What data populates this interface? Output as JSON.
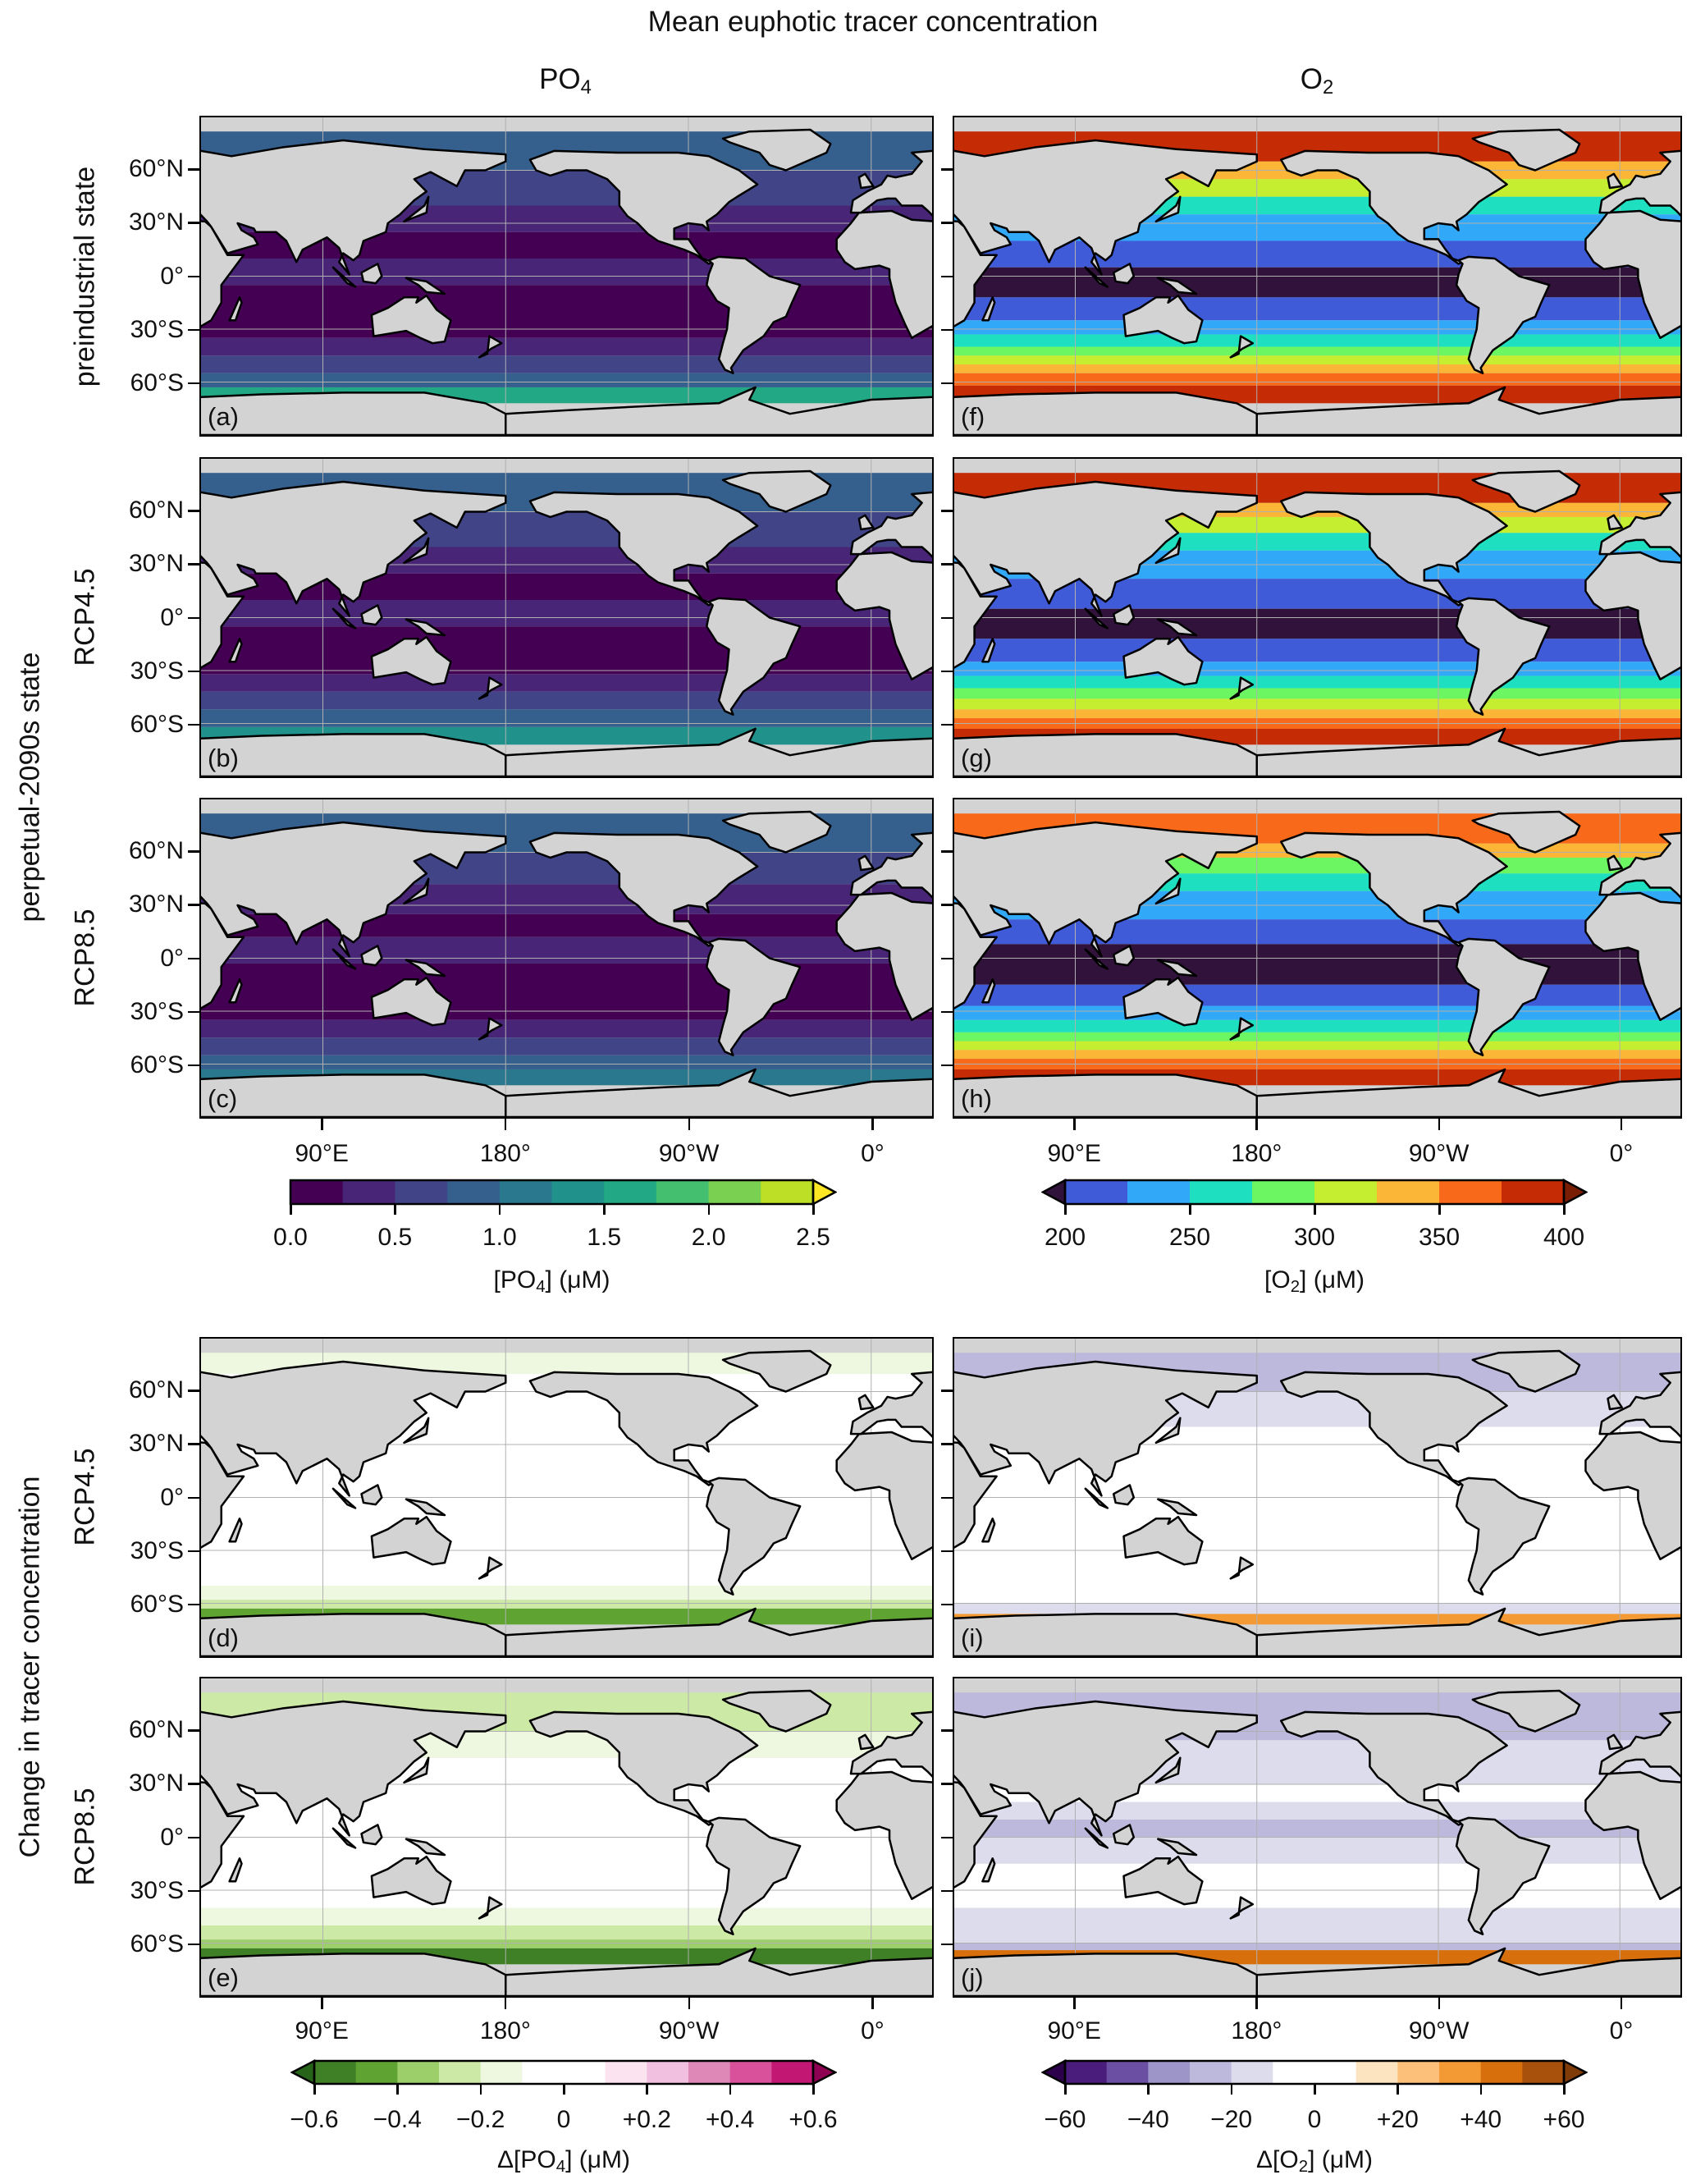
{
  "title": "Mean euphotic tracer concentration",
  "columns": [
    {
      "main": "PO",
      "sub": "4"
    },
    {
      "main": "O",
      "sub": "2"
    }
  ],
  "row_labels": {
    "preindustrial": "preindustrial state",
    "rcp45": "RCP4.5",
    "rcp85": "RCP8.5",
    "perpetual": "perpetual-2090s state",
    "change_rcp45": "RCP4.5",
    "change_rcp85": "RCP8.5",
    "change": "Change in tracer concentration"
  },
  "panels": {
    "a": "(a)",
    "b": "(b)",
    "c": "(c)",
    "d": "(d)",
    "e": "(e)",
    "f": "(f)",
    "g": "(g)",
    "h": "(h)",
    "i": "(i)",
    "j": "(j)"
  },
  "lat_ticks": [
    "60°N",
    "30°N",
    "0°",
    "30°S",
    "60°S"
  ],
  "lon_ticks": [
    "90°E",
    "180°",
    "90°W",
    "0°"
  ],
  "colors": {
    "land": "#d3d3d3",
    "coast": "#000000",
    "grid": "#b0b0b0"
  },
  "colorbars": {
    "po4": {
      "label": {
        "pre": "[PO",
        "sub": "4",
        "post": "] (μM)"
      },
      "min": 0,
      "max": 2.5,
      "extend": "max",
      "ticks": [
        "0.0",
        "0.5",
        "1.0",
        "1.5",
        "2.0",
        "2.5"
      ],
      "colors": [
        "#440154",
        "#482576",
        "#414487",
        "#355f8d",
        "#2a788e",
        "#21918c",
        "#22a884",
        "#44bf70",
        "#7ad151",
        "#bddf26"
      ],
      "over": "#fde725"
    },
    "o2": {
      "label": {
        "pre": "[O",
        "sub": "2",
        "post": "] (μM)"
      },
      "min": 200,
      "max": 400,
      "extend": "both",
      "ticks": [
        "200",
        "250",
        "300",
        "350",
        "400"
      ],
      "colors": [
        "#3f5bd8",
        "#32a8f8",
        "#1ee0c0",
        "#6cf762",
        "#c5ee30",
        "#fbb638",
        "#f86a1a",
        "#c52b05"
      ],
      "under": "#30123b",
      "over": "#7a1d05"
    },
    "dpo4": {
      "label": {
        "pre": "Δ[PO",
        "sub": "4",
        "post": "] (μM)"
      },
      "min": -0.6,
      "max": 0.6,
      "extend": "both",
      "ticks": [
        "−0.6",
        "−0.4",
        "−0.2",
        "0",
        "+0.2",
        "+0.4",
        "+0.6"
      ],
      "colors": [
        "#3f7f25",
        "#5fa333",
        "#9cce6a",
        "#cde9a6",
        "#eef7df",
        "#ffffff",
        "#ffffff",
        "#fbe3f0",
        "#f1bfdf",
        "#de88b8",
        "#d9519a",
        "#c21874"
      ],
      "under": "#276419",
      "over": "#8e0152"
    },
    "do2": {
      "label": {
        "pre": "Δ[O",
        "sub": "2",
        "post": "] (μM)"
      },
      "min": -60,
      "max": 60,
      "extend": "both",
      "ticks": [
        "−60",
        "−40",
        "−20",
        "0",
        "+20",
        "+40",
        "+60"
      ],
      "colors": [
        "#4a1c7c",
        "#6a4fa3",
        "#9d95c8",
        "#bdb9dc",
        "#dcdcec",
        "#ffffff",
        "#ffffff",
        "#fde4c0",
        "#fdc07a",
        "#f39a34",
        "#d86f0d",
        "#a8510c"
      ],
      "under": "#2d004b",
      "over": "#7f3b08"
    }
  }
}
